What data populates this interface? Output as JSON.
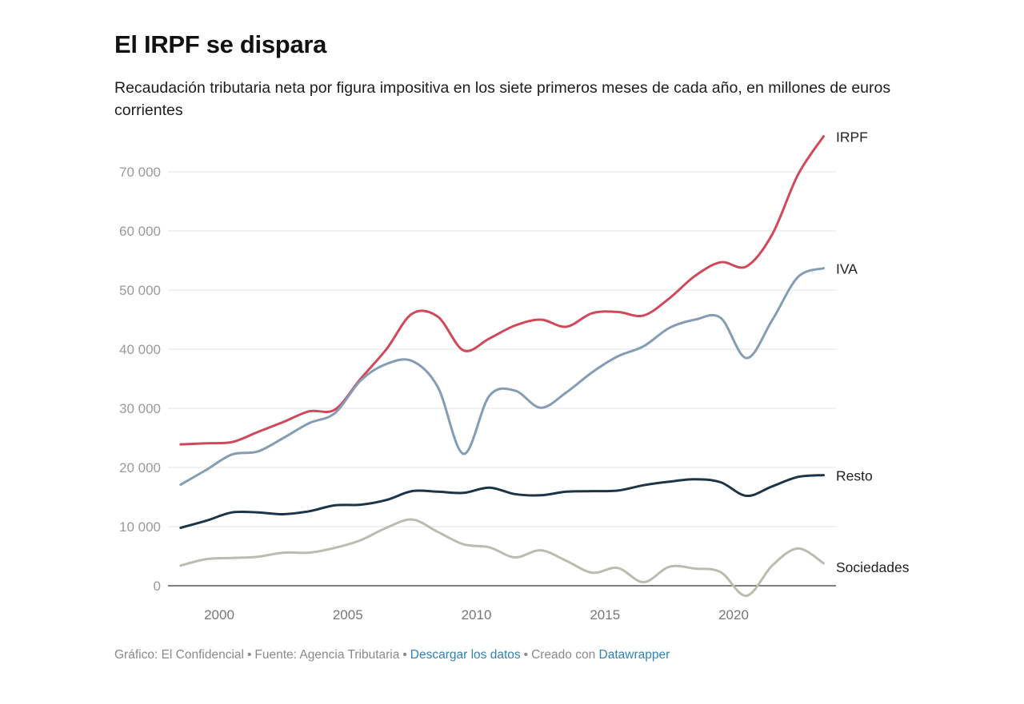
{
  "title": "El IRPF se dispara",
  "subtitle": "Recaudación tributaria neta por figura impositiva en los siete primeros meses de cada año, en millones de euros corrientes",
  "footer": {
    "credit": "Gráfico: El Confidencial",
    "source": "Fuente: Agencia Tributaria",
    "download_link": "Descargar los datos",
    "created_with": "Creado con",
    "tool_link": "Datawrapper",
    "link_color": "#2f82b8"
  },
  "chart_data": {
    "type": "line",
    "title": "El IRPF se dispara",
    "xlabel": "",
    "ylabel": "",
    "x": [
      1998.5,
      1999.5,
      2000.5,
      2001.5,
      2002.5,
      2003.5,
      2004.5,
      2005.5,
      2006.5,
      2007.5,
      2008.5,
      2009.5,
      2010.5,
      2011.5,
      2012.5,
      2013.5,
      2014.5,
      2015.5,
      2016.5,
      2017.5,
      2018.5,
      2019.5,
      2020.5,
      2021.5,
      2022.5,
      2023.5
    ],
    "xlim": [
      1998.3,
      2023.9
    ],
    "ylim": [
      0,
      75000
    ],
    "x_ticks": [
      2000,
      2005,
      2010,
      2015,
      2020
    ],
    "x_tick_labels": [
      "2000",
      "2005",
      "2010",
      "2015",
      "2020"
    ],
    "y_ticks": [
      0,
      10000,
      20000,
      30000,
      40000,
      50000,
      60000,
      70000
    ],
    "y_tick_labels": [
      "0",
      "10 000",
      "20 000",
      "30 000",
      "40 000",
      "50 000",
      "60 000",
      "70 000"
    ],
    "grid": true,
    "series": [
      {
        "name": "IRPF",
        "color": "#d0485a",
        "values": [
          23900,
          24100,
          24300,
          26000,
          27700,
          29500,
          29800,
          35000,
          40000,
          46000,
          45500,
          39800,
          41800,
          44000,
          45000,
          43800,
          46100,
          46300,
          45700,
          48600,
          52400,
          54700,
          54000,
          59400,
          69500,
          76000
        ]
      },
      {
        "name": "IVA",
        "color": "#849db4",
        "values": [
          17100,
          19600,
          22200,
          22700,
          25000,
          27500,
          29200,
          34700,
          37500,
          38000,
          33600,
          22300,
          32100,
          33000,
          30100,
          32700,
          36100,
          38800,
          40500,
          43600,
          45000,
          45300,
          38500,
          44900,
          52200,
          53700
        ]
      },
      {
        "name": "Resto",
        "color": "#1b3447",
        "values": [
          9800,
          11000,
          12400,
          12400,
          12100,
          12600,
          13600,
          13700,
          14500,
          16000,
          15900,
          15700,
          16600,
          15500,
          15300,
          15900,
          16000,
          16100,
          17000,
          17600,
          18000,
          17500,
          15200,
          16800,
          18400,
          18700
        ]
      },
      {
        "name": "Sociedades",
        "color": "#bcbbb1",
        "values": [
          3400,
          4500,
          4700,
          4900,
          5600,
          5600,
          6400,
          7700,
          9800,
          11200,
          9100,
          7000,
          6500,
          4800,
          6000,
          4200,
          2200,
          3000,
          600,
          3200,
          2900,
          2300,
          -1700,
          3400,
          6300,
          3800
        ]
      }
    ]
  }
}
